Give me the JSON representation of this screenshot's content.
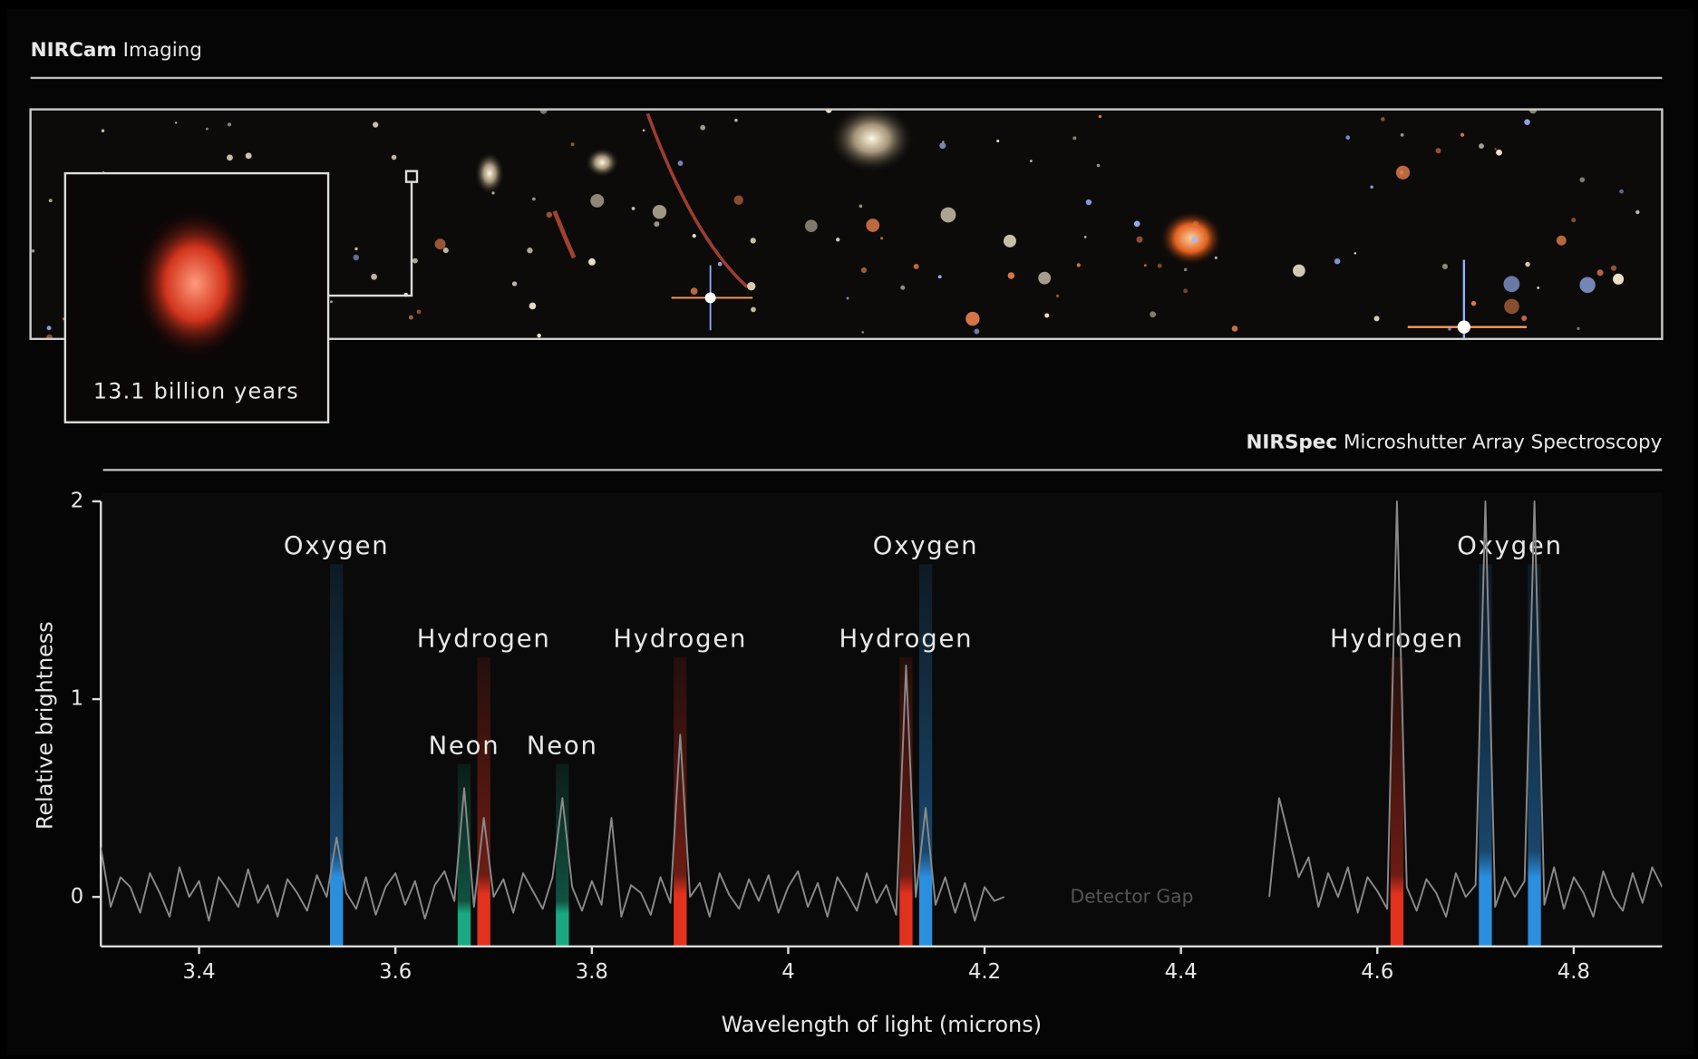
{
  "image_panel": {
    "instrument": "NIRCam",
    "mode": "Imaging",
    "inset_label": "13.1 billion years"
  },
  "chart_data": {
    "type": "line",
    "instrument": "NIRSpec",
    "mode": "Microshutter Array Spectroscopy",
    "x_label": "Wavelength of light (microns)",
    "y_label": "Relative brightness",
    "xlim": [
      3.3,
      4.89
    ],
    "ylim": [
      -0.25,
      2
    ],
    "xticks": [
      3.4,
      3.6,
      3.8,
      4,
      4.2,
      4.4,
      4.6,
      4.8
    ],
    "yticks": [
      0,
      1,
      2
    ],
    "annotation": {
      "text": "Detector Gap",
      "x": 4.35,
      "y": 0
    },
    "series": [
      {
        "color": "#8a8a8a",
        "x": [
          3.3,
          3.31,
          3.32,
          3.33,
          3.34,
          3.35,
          3.36,
          3.37,
          3.38,
          3.39,
          3.4,
          3.41,
          3.42,
          3.43,
          3.44,
          3.45,
          3.46,
          3.47,
          3.48,
          3.49,
          3.5,
          3.51,
          3.52,
          3.53,
          3.54,
          3.55,
          3.56,
          3.57,
          3.58,
          3.59,
          3.6,
          3.61,
          3.62,
          3.63,
          3.64,
          3.65,
          3.66,
          3.67,
          3.68,
          3.69,
          3.7,
          3.71,
          3.72,
          3.73,
          3.74,
          3.75,
          3.76,
          3.77,
          3.78,
          3.79,
          3.8,
          3.81,
          3.82,
          3.83,
          3.84,
          3.85,
          3.86,
          3.87,
          3.88,
          3.89,
          3.9,
          3.91,
          3.92,
          3.93,
          3.94,
          3.95,
          3.96,
          3.97,
          3.98,
          3.99,
          4.0,
          4.01,
          4.02,
          4.03,
          4.04,
          4.05,
          4.06,
          4.07,
          4.08,
          4.09,
          4.1,
          4.11,
          4.12,
          4.13,
          4.14,
          4.15,
          4.16,
          4.17,
          4.18,
          4.19,
          4.2,
          4.21,
          4.22,
          4.35,
          4.49,
          4.5,
          4.51,
          4.52,
          4.53,
          4.54,
          4.55,
          4.56,
          4.57,
          4.58,
          4.59,
          4.6,
          4.61,
          4.62,
          4.63,
          4.64,
          4.65,
          4.66,
          4.67,
          4.68,
          4.69,
          4.7,
          4.71,
          4.72,
          4.73,
          4.74,
          4.75,
          4.76,
          4.77,
          4.78,
          4.79,
          4.8,
          4.81,
          4.82,
          4.83,
          4.84,
          4.85,
          4.86,
          4.87,
          4.88,
          4.89
        ],
        "values": [
          0.25,
          -0.05,
          0.1,
          0.05,
          -0.08,
          0.12,
          0.02,
          -0.1,
          0.15,
          0.0,
          0.08,
          -0.12,
          0.1,
          0.03,
          -0.05,
          0.14,
          -0.03,
          0.06,
          -0.1,
          0.09,
          0.02,
          -0.07,
          0.11,
          0.0,
          0.3,
          0.02,
          -0.06,
          0.1,
          -0.09,
          0.05,
          0.12,
          -0.04,
          0.08,
          -0.11,
          0.06,
          0.13,
          -0.02,
          0.55,
          -0.05,
          0.4,
          0.0,
          0.09,
          -0.08,
          0.12,
          0.03,
          -0.06,
          0.1,
          0.5,
          0.05,
          -0.07,
          0.08,
          -0.04,
          0.4,
          -0.1,
          0.06,
          0.02,
          -0.09,
          0.1,
          -0.03,
          0.82,
          0.0,
          0.07,
          -0.1,
          0.12,
          0.01,
          -0.06,
          0.09,
          -0.02,
          0.11,
          -0.08,
          0.05,
          0.13,
          -0.05,
          0.07,
          -0.1,
          0.1,
          0.02,
          -0.07,
          0.12,
          -0.03,
          0.06,
          -0.09,
          1.17,
          0.0,
          0.45,
          -0.04,
          0.1,
          -0.08,
          0.07,
          -0.12,
          0.05,
          -0.02,
          0.0,
          null,
          0.0,
          0.5,
          0.3,
          0.1,
          0.2,
          -0.05,
          0.12,
          0.0,
          0.15,
          -0.08,
          0.1,
          0.03,
          -0.06,
          2.0,
          0.05,
          -0.07,
          0.09,
          0.02,
          -0.1,
          0.12,
          0.0,
          0.06,
          2.0,
          -0.05,
          0.1,
          0.0,
          0.08,
          2.0,
          -0.04,
          0.15,
          -0.06,
          0.1,
          0.02,
          -0.1,
          0.13,
          0.0,
          -0.07,
          0.12,
          -0.03,
          0.15,
          0.05
        ]
      }
    ],
    "emission_lines": [
      {
        "label": "Oxygen",
        "wavelengths": [
          3.54
        ],
        "color": "#2b8fe0"
      },
      {
        "label": "Neon",
        "wavelengths": [
          3.67
        ],
        "color": "#1aa882"
      },
      {
        "label": "Hydrogen",
        "wavelengths": [
          3.69
        ],
        "color": "#e2321e"
      },
      {
        "label": "Neon",
        "wavelengths": [
          3.77
        ],
        "color": "#1aa882"
      },
      {
        "label": "Hydrogen",
        "wavelengths": [
          3.89
        ],
        "color": "#e2321e"
      },
      {
        "label": "Hydrogen",
        "wavelengths": [
          4.12
        ],
        "color": "#e2321e"
      },
      {
        "label": "Oxygen",
        "wavelengths": [
          4.14
        ],
        "color": "#2b8fe0"
      },
      {
        "label": "Hydrogen",
        "wavelengths": [
          4.62
        ],
        "color": "#e2321e"
      },
      {
        "label": "Oxygen",
        "wavelengths": [
          4.71,
          4.76
        ],
        "color": "#2b8fe0"
      }
    ]
  }
}
